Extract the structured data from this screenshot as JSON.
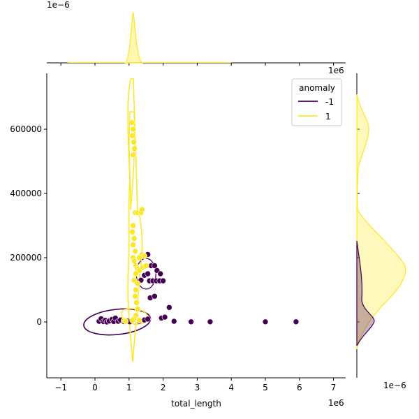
{
  "chart_data": {
    "type": "scatter",
    "subtype": "jointplot-kde",
    "xlabel": "total_length",
    "ylabel": "",
    "x_offset_label": "1e6",
    "top_marginal_offset_label": "1e−6",
    "right_marginal_offset_top_label": "1e6",
    "right_marginal_offset_bottom_label": "1e−6",
    "xlim": [
      -1.4,
      7.4
    ],
    "ylim": [
      -180000,
      770000
    ],
    "x_ticks": [
      -1,
      0,
      1,
      2,
      3,
      4,
      5,
      6,
      7
    ],
    "y_ticks": [
      0,
      200000,
      400000,
      600000
    ],
    "grid": false,
    "legend": {
      "title": "anomaly",
      "position": "top-right",
      "entries": [
        "-1",
        "1"
      ]
    },
    "series": [
      {
        "name": "-1",
        "color": "#440154",
        "points": [
          [
            0.12,
            2000
          ],
          [
            0.18,
            10000
          ],
          [
            0.25,
            1000
          ],
          [
            0.3,
            5000
          ],
          [
            0.35,
            0
          ],
          [
            0.42,
            3000
          ],
          [
            0.5,
            8000
          ],
          [
            0.55,
            1000
          ],
          [
            0.6,
            12000
          ],
          [
            0.68,
            2000
          ],
          [
            0.75,
            6000
          ],
          [
            0.85,
            1000
          ],
          [
            0.95,
            3000
          ],
          [
            1.02,
            500
          ],
          [
            1.3,
            2000
          ],
          [
            1.45,
            6000
          ],
          [
            1.55,
            9000
          ],
          [
            1.35,
            130000
          ],
          [
            1.45,
            145000
          ],
          [
            1.55,
            150000
          ],
          [
            1.6,
            128000
          ],
          [
            1.7,
            128000
          ],
          [
            1.8,
            128000
          ],
          [
            1.9,
            128000
          ],
          [
            2.0,
            128000
          ],
          [
            1.55,
            210000
          ],
          [
            1.65,
            175000
          ],
          [
            1.75,
            175000
          ],
          [
            1.82,
            160000
          ],
          [
            1.92,
            150000
          ],
          [
            1.62,
            75000
          ],
          [
            1.75,
            80000
          ],
          [
            2.18,
            45000
          ],
          [
            1.95,
            12000
          ],
          [
            2.05,
            15000
          ],
          [
            2.32,
            2000
          ],
          [
            2.82,
            500
          ],
          [
            3.38,
            500
          ],
          [
            5.0,
            500
          ],
          [
            5.9,
            500
          ]
        ]
      },
      {
        "name": "1",
        "color": "#fde725",
        "points": [
          [
            1.08,
            620000
          ],
          [
            1.12,
            600000
          ],
          [
            1.1,
            580000
          ],
          [
            1.14,
            560000
          ],
          [
            1.16,
            540000
          ],
          [
            1.12,
            520000
          ],
          [
            1.18,
            340000
          ],
          [
            1.25,
            340000
          ],
          [
            1.35,
            340000
          ],
          [
            1.38,
            350000
          ],
          [
            1.12,
            300000
          ],
          [
            1.1,
            280000
          ],
          [
            1.15,
            260000
          ],
          [
            1.12,
            240000
          ],
          [
            1.18,
            220000
          ],
          [
            1.12,
            200000
          ],
          [
            1.15,
            190000
          ],
          [
            1.2,
            175000
          ],
          [
            1.25,
            165000
          ],
          [
            1.3,
            160000
          ],
          [
            1.4,
            170000
          ],
          [
            1.5,
            175000
          ],
          [
            1.38,
            210000
          ],
          [
            1.45,
            205000
          ],
          [
            1.3,
            200000
          ],
          [
            1.2,
            150000
          ],
          [
            1.15,
            130000
          ],
          [
            1.25,
            120000
          ],
          [
            1.2,
            100000
          ],
          [
            1.18,
            80000
          ],
          [
            1.22,
            60000
          ],
          [
            1.25,
            40000
          ],
          [
            1.2,
            20000
          ],
          [
            1.15,
            10000
          ],
          [
            1.1,
            5000
          ],
          [
            0.85,
            5000
          ],
          [
            0.9,
            2000
          ],
          [
            1.3,
            5000
          ]
        ]
      }
    ],
    "top_marginal": {
      "series": "1",
      "peak_x": 1.12
    },
    "right_marginal": {
      "-1": {
        "peaks_y": [
          10000,
          130000
        ],
        "peak_density": 0.4
      },
      "1": {
        "peaks_y": [
          160000,
          590000
        ],
        "peak_density": 1.0
      }
    }
  }
}
